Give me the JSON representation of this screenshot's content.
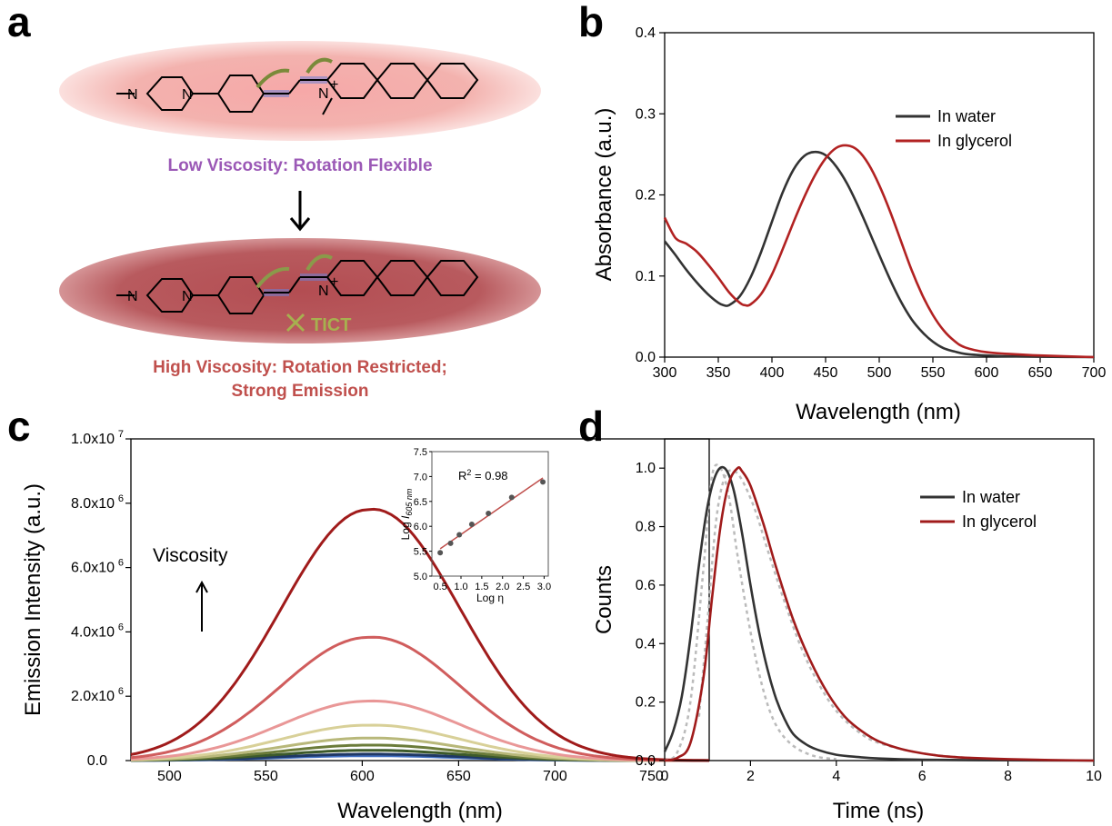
{
  "panels": {
    "a": "a",
    "b": "b",
    "c": "c",
    "d": "d"
  },
  "scheme": {
    "low_caption": "Low Viscosity: Rotation Flexible",
    "high_caption_line1": "High Viscosity: Rotation Restricted;",
    "high_caption_line2": "Strong Emission",
    "tict_label": "TICT",
    "atom_n1": "N",
    "atom_n2": "N",
    "atom_n_plus": "N",
    "charge": "+",
    "low_color": "#9b59b6",
    "high_color": "#c0504d"
  },
  "chart_data": [
    {
      "panel": "b",
      "type": "line",
      "xlabel": "Wavelength (nm)",
      "ylabel": "Absorbance (a.u.)",
      "xlim": [
        300,
        700
      ],
      "ylim": [
        0,
        0.4
      ],
      "xticks": [
        "300",
        "350",
        "400",
        "450",
        "500",
        "550",
        "600",
        "650",
        "700"
      ],
      "yticks": [
        "0.0",
        "0.1",
        "0.2",
        "0.3",
        "0.4"
      ],
      "legend_position": "top-right",
      "series": [
        {
          "name": "In water",
          "color": "#333333",
          "x": [
            300,
            310,
            320,
            330,
            340,
            350,
            355,
            360,
            370,
            380,
            390,
            400,
            410,
            420,
            430,
            440,
            450,
            460,
            470,
            480,
            490,
            500,
            510,
            520,
            530,
            540,
            550,
            560,
            570,
            580,
            600,
            620,
            650,
            700
          ],
          "y": [
            0.143,
            0.126,
            0.108,
            0.092,
            0.078,
            0.067,
            0.064,
            0.064,
            0.075,
            0.098,
            0.13,
            0.167,
            0.203,
            0.231,
            0.248,
            0.253,
            0.249,
            0.235,
            0.214,
            0.187,
            0.157,
            0.126,
            0.096,
            0.069,
            0.047,
            0.031,
            0.019,
            0.011,
            0.007,
            0.004,
            0.002,
            0.001,
            0.0005,
            0.0
          ]
        },
        {
          "name": "In glycerol",
          "color": "#b22222",
          "x": [
            300,
            310,
            320,
            330,
            340,
            350,
            360,
            370,
            375,
            380,
            390,
            400,
            410,
            420,
            430,
            440,
            450,
            460,
            470,
            480,
            490,
            500,
            510,
            520,
            530,
            540,
            550,
            560,
            570,
            580,
            600,
            620,
            650,
            700
          ],
          "y": [
            0.172,
            0.147,
            0.14,
            0.13,
            0.115,
            0.098,
            0.08,
            0.067,
            0.064,
            0.065,
            0.078,
            0.102,
            0.133,
            0.166,
            0.197,
            0.224,
            0.245,
            0.258,
            0.261,
            0.255,
            0.238,
            0.212,
            0.18,
            0.144,
            0.108,
            0.077,
            0.052,
            0.033,
            0.02,
            0.012,
            0.006,
            0.004,
            0.002,
            0.0
          ]
        }
      ]
    },
    {
      "panel": "c",
      "type": "line",
      "xlabel": "Wavelength (nm)",
      "ylabel": "Emission Intensity (a.u.)",
      "xlim": [
        480,
        780
      ],
      "ylim": [
        0,
        10000000
      ],
      "xticks": [
        "500",
        "550",
        "600",
        "650",
        "700",
        "750"
      ],
      "yticks": [
        "0.0",
        "2.0x10",
        "4.0x10",
        "6.0x10",
        "8.0x10",
        "1.0x10"
      ],
      "ytick_exponents": [
        "",
        "6",
        "6",
        "6",
        "6",
        "7"
      ],
      "annotation": "Viscosity",
      "series_peak_wavelength": 603,
      "series_width_sigma": 45,
      "series": [
        {
          "peak": 150000,
          "color": "#4472c4"
        },
        {
          "peak": 200000,
          "color": "#1f3864"
        },
        {
          "peak": 320000,
          "color": "#3d5a2a"
        },
        {
          "peak": 480000,
          "color": "#6b7c3a"
        },
        {
          "peak": 700000,
          "color": "#b8b87a"
        },
        {
          "peak": 1100000,
          "color": "#d8d098"
        },
        {
          "peak": 1850000,
          "color": "#e99797"
        },
        {
          "peak": 3830000,
          "color": "#d05d5d"
        },
        {
          "peak": 7800000,
          "color": "#a01b1b"
        }
      ],
      "inset": {
        "type": "scatter",
        "xlabel": "Log η",
        "ylabel_main": "Log ",
        "ylabel_italic": "I",
        "ylabel_sub": "605 nm",
        "annotation_prefix": "R",
        "annotation_sup": "2",
        "annotation_suffix": " = 0.98",
        "xlim": [
          0.3,
          3.1
        ],
        "ylim": [
          5.0,
          7.5
        ],
        "xticks": [
          "0.5",
          "1.0",
          "1.5",
          "2.0",
          "2.5",
          "3.0"
        ],
        "yticks": [
          "5.0",
          "5.5",
          "6.0",
          "6.5",
          "7.0",
          "7.5"
        ],
        "points": {
          "x": [
            0.5,
            0.75,
            0.96,
            1.26,
            1.66,
            2.22,
            2.97
          ],
          "y": [
            5.47,
            5.66,
            5.83,
            6.04,
            6.26,
            6.58,
            6.89
          ]
        },
        "fit": {
          "x": [
            0.5,
            2.97
          ],
          "y": [
            5.55,
            6.97
          ]
        },
        "fit_color": "#c0504d"
      }
    },
    {
      "panel": "d",
      "type": "line",
      "xlabel": "Time (ns)",
      "ylabel": "Counts",
      "xlim": [
        0,
        10
      ],
      "ylim": [
        0,
        1.1
      ],
      "xticks": [
        "0",
        "2",
        "4",
        "6",
        "8",
        "10"
      ],
      "yticks": [
        "0.0",
        "0.2",
        "0.4",
        "0.6",
        "0.8",
        "1.0"
      ],
      "legend_position": "top-right",
      "series": [
        {
          "name": "In water",
          "color": "#333333",
          "x": [
            0,
            0.2,
            0.4,
            0.6,
            0.8,
            1.0,
            1.2,
            1.4,
            1.6,
            1.8,
            2.0,
            2.2,
            2.4,
            2.6,
            2.8,
            3.0,
            3.3,
            3.6,
            4.0,
            4.5,
            5.0,
            6.0,
            8.0,
            10.0
          ],
          "y": [
            0.03,
            0.1,
            0.22,
            0.42,
            0.67,
            0.87,
            0.98,
            1.0,
            0.93,
            0.78,
            0.6,
            0.44,
            0.31,
            0.21,
            0.14,
            0.09,
            0.055,
            0.035,
            0.02,
            0.012,
            0.007,
            0.003,
            0.001,
            0.0
          ]
        },
        {
          "name": "In glycerol",
          "color": "#a01b1b",
          "x": [
            0,
            0.3,
            0.6,
            0.9,
            1.1,
            1.3,
            1.5,
            1.7,
            1.8,
            2.0,
            2.3,
            2.6,
            3.0,
            3.4,
            3.8,
            4.2,
            4.6,
            5.0,
            5.5,
            6.0,
            6.5,
            7.0,
            8.0,
            9.0,
            10.0
          ],
          "y": [
            0.0,
            0.01,
            0.06,
            0.28,
            0.55,
            0.8,
            0.95,
            1.0,
            0.99,
            0.94,
            0.81,
            0.66,
            0.48,
            0.34,
            0.23,
            0.15,
            0.1,
            0.065,
            0.04,
            0.025,
            0.015,
            0.01,
            0.005,
            0.002,
            0.0
          ]
        }
      ],
      "fit_series": [
        {
          "color": "#bbbbbb",
          "x": [
            0,
            0.3,
            0.6,
            0.9,
            1.1,
            1.3,
            1.5,
            1.7,
            2.0,
            2.3,
            2.6,
            3.0,
            3.5,
            4.0
          ],
          "y": [
            0.0,
            0.03,
            0.2,
            0.65,
            0.97,
            1.0,
            0.9,
            0.7,
            0.44,
            0.24,
            0.12,
            0.05,
            0.015,
            0.005
          ]
        },
        {
          "color": "#bbbbbb",
          "x": [
            0.8,
            1.0,
            1.2,
            1.4,
            1.6,
            1.8,
            2.1,
            2.4,
            2.8,
            3.2,
            3.6,
            4.0,
            4.5,
            5.0,
            6.0,
            7.0,
            8.0
          ],
          "y": [
            0.15,
            0.48,
            0.82,
            0.97,
            0.99,
            0.96,
            0.86,
            0.72,
            0.54,
            0.38,
            0.26,
            0.17,
            0.1,
            0.06,
            0.025,
            0.01,
            0.004
          ]
        }
      ]
    }
  ]
}
